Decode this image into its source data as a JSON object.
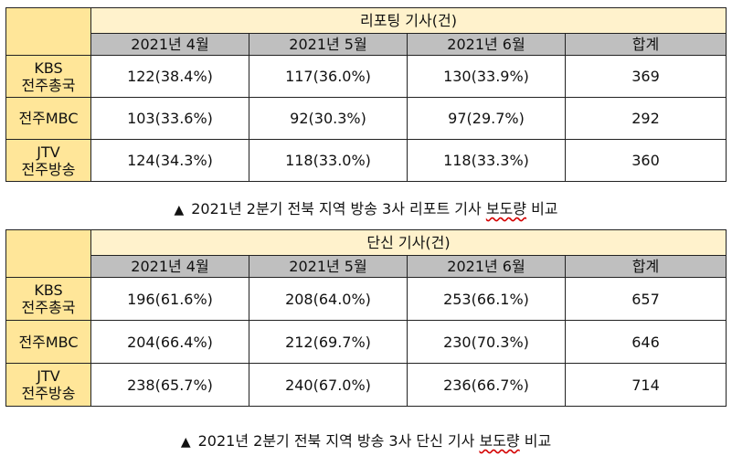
{
  "tables": [
    {
      "title": "리포팅 기사(건)",
      "columns": [
        "2021년 4월",
        "2021년 5월",
        "2021년 6월",
        "합계"
      ],
      "rows": [
        {
          "label_line1": "KBS",
          "label_line2": "전주총국",
          "values": [
            "122(38.4%)",
            "117(36.0%)",
            "130(33.9%)",
            "369"
          ]
        },
        {
          "label_line1": "전주MBC",
          "label_line2": "",
          "values": [
            "103(33.6%)",
            "92(30.3%)",
            "97(29.7%)",
            "292"
          ]
        },
        {
          "label_line1": "JTV",
          "label_line2": "전주방송",
          "values": [
            "124(34.3%)",
            "118(33.0%)",
            "118(33.3%)",
            "360"
          ]
        }
      ],
      "caption_marker": "▲",
      "caption_text": "2021년 2분기 전북 지역 방송 3사 리포트 기사 ",
      "caption_underlined": "보도량",
      "caption_tail": " 비교"
    },
    {
      "title": "단신 기사(건)",
      "columns": [
        "2021년 4월",
        "2021년 5월",
        "2021년 6월",
        "합계"
      ],
      "rows": [
        {
          "label_line1": "KBS",
          "label_line2": "전주총국",
          "values": [
            "196(61.6%)",
            "208(64.0%)",
            "253(66.1%)",
            "657"
          ]
        },
        {
          "label_line1": "전주MBC",
          "label_line2": "",
          "values": [
            "204(66.4%)",
            "212(69.7%)",
            "230(70.3%)",
            "646"
          ]
        },
        {
          "label_line1": "JTV",
          "label_line2": "전주방송",
          "values": [
            "238(65.7%)",
            "240(67.0%)",
            "236(66.7%)",
            "714"
          ]
        }
      ],
      "caption_marker": "▲",
      "caption_text": "2021년 2분기 전북 지역 방송 3사 단신 기사 ",
      "caption_underlined": "보도량",
      "caption_tail": " 비교"
    }
  ]
}
